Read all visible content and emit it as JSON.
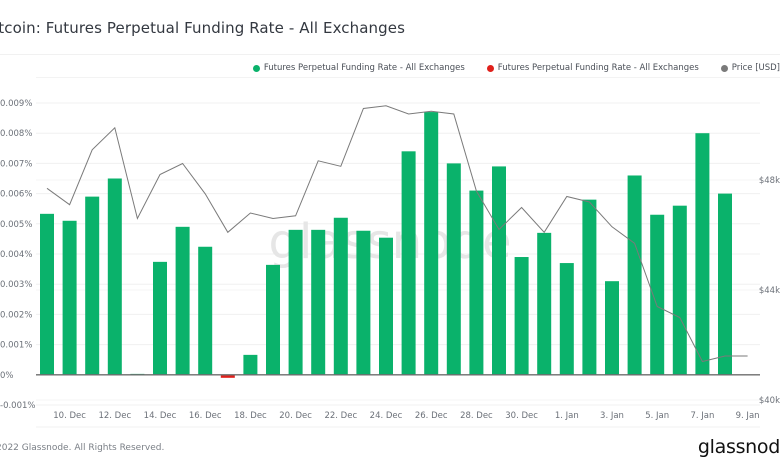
{
  "header": {
    "title": "itcoin: Futures Perpetual Funding Rate - All Exchanges"
  },
  "legend": [
    {
      "label": "Futures Perpetual Funding Rate - All Exchanges",
      "color": "#0ab26b"
    },
    {
      "label": "Futures Perpetual Funding Rate - All Exchanges",
      "color": "#e0201b"
    },
    {
      "label": "Price [USD]",
      "color": "#7a7a7a"
    }
  ],
  "footer": {
    "copyright": "2022 Glassnode. All Rights Reserved.",
    "brand": "glassnod"
  },
  "watermark": "glassnode",
  "chart_data": {
    "type": "bar",
    "title": "itcoin: Futures Perpetual Funding Rate - All Exchanges",
    "xlabel": "",
    "ylabel": "Funding Rate (%)",
    "y2label": "Price [USD]",
    "ylim": [
      -0.001,
      0.009
    ],
    "y2lim": [
      40000,
      51000
    ],
    "grid": true,
    "legend_position": "top-right",
    "y_ticks": [
      "-0.001%",
      "0%",
      "0.001%",
      "0.002%",
      "0.003%",
      "0.004%",
      "0.005%",
      "0.006%",
      "0.007%",
      "0.008%",
      "0.009%"
    ],
    "y_tick_values": [
      -0.001,
      0,
      0.001,
      0.002,
      0.003,
      0.004,
      0.005,
      0.006,
      0.007,
      0.008,
      0.009
    ],
    "y2_ticks": [
      "$40k",
      "$44k",
      "$48k"
    ],
    "y2_tick_values": [
      40000,
      44000,
      48000
    ],
    "x_ticks": [
      "10. Dec",
      "12. Dec",
      "14. Dec",
      "16. Dec",
      "18. Dec",
      "20. Dec",
      "22. Dec",
      "24. Dec",
      "26. Dec",
      "28. Dec",
      "30. Dec",
      "1. Jan",
      "3. Jan",
      "5. Jan",
      "7. Jan",
      "9. Jan"
    ],
    "x_tick_index": [
      1,
      3,
      5,
      7,
      9,
      11,
      13,
      15,
      17,
      19,
      21,
      23,
      25,
      27,
      29,
      31
    ],
    "categories": [
      "9 Dec",
      "10 Dec",
      "11 Dec",
      "12 Dec",
      "13 Dec",
      "14 Dec",
      "15 Dec",
      "16 Dec",
      "17 Dec",
      "18 Dec",
      "19 Dec",
      "20 Dec",
      "21 Dec",
      "22 Dec",
      "23 Dec",
      "24 Dec",
      "25 Dec",
      "26 Dec",
      "27 Dec",
      "28 Dec",
      "29 Dec",
      "30 Dec",
      "31 Dec",
      "1 Jan",
      "2 Jan",
      "3 Jan",
      "4 Jan",
      "5 Jan",
      "6 Jan",
      "7 Jan",
      "8 Jan",
      "9 Jan"
    ],
    "series": [
      {
        "name": "Futures Perpetual Funding Rate - All Exchanges",
        "kind": "bar",
        "axis": "left",
        "color": "#0ab26b",
        "values": [
          0.00533,
          0.0051,
          0.0059,
          0.0065,
          3e-05,
          0.00374,
          0.0049,
          0.00424,
          -0.0001,
          0.00066,
          0.00364,
          0.0048,
          0.0048,
          0.0052,
          0.00477,
          0.00454,
          0.0074,
          0.0087,
          0.007,
          0.0061,
          0.0069,
          0.0039,
          0.0047,
          0.0037,
          0.0058,
          0.0031,
          0.0066,
          0.0053,
          0.0056,
          0.008,
          0.006,
          null
        ]
      },
      {
        "name": "Price [USD]",
        "kind": "line",
        "axis": "right",
        "color": "#7a7a7a",
        "values": [
          47700,
          47100,
          49100,
          49900,
          46600,
          48200,
          48600,
          47500,
          46100,
          46800,
          46600,
          46700,
          48700,
          48500,
          50600,
          50700,
          50400,
          50500,
          50400,
          47600,
          46200,
          47000,
          46100,
          47400,
          47200,
          46300,
          45700,
          43400,
          43000,
          41400,
          41600,
          41600
        ]
      }
    ],
    "negative_color": "#e0201b"
  }
}
